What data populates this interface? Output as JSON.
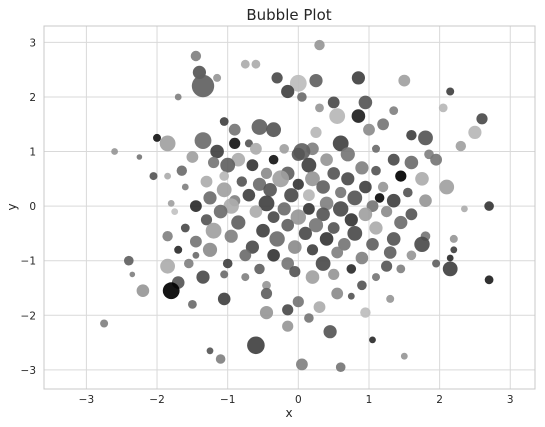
{
  "chart_data": {
    "type": "scatter",
    "title": "Bubble Plot",
    "xlabel": "x",
    "ylabel": "y",
    "xlim": [
      -3.6,
      3.35
    ],
    "ylim": [
      -3.35,
      3.3
    ],
    "xticks": [
      -3,
      -2,
      -1,
      0,
      1,
      2,
      3
    ],
    "yticks": [
      -3,
      -2,
      -1,
      0,
      1,
      2,
      3
    ],
    "grid": true,
    "style": "whitegrid",
    "colors": {
      "background": "#ffffff",
      "grid": "#d9d9d9",
      "spine": "#c8c8c8",
      "text": "#262626"
    },
    "encoding": {
      "point_color": "grayscale value from 0 (black) to 1 (light gray)",
      "point_size": "bubble area"
    },
    "points": [
      {
        "x": 0.3,
        "y": 2.95,
        "s": 70,
        "c": 0.7
      },
      {
        "x": -1.45,
        "y": 2.75,
        "s": 70,
        "c": 0.6
      },
      {
        "x": -0.6,
        "y": 2.6,
        "s": 50,
        "c": 0.8
      },
      {
        "x": -0.75,
        "y": 2.6,
        "s": 50,
        "c": 0.8
      },
      {
        "x": -1.4,
        "y": 2.45,
        "s": 110,
        "c": 0.4
      },
      {
        "x": -1.15,
        "y": 2.35,
        "s": 40,
        "c": 0.7
      },
      {
        "x": -0.3,
        "y": 2.35,
        "s": 80,
        "c": 0.35
      },
      {
        "x": 0.25,
        "y": 2.3,
        "s": 110,
        "c": 0.45
      },
      {
        "x": 0.85,
        "y": 2.35,
        "s": 110,
        "c": 0.3
      },
      {
        "x": 0.0,
        "y": 2.25,
        "s": 180,
        "c": 0.88
      },
      {
        "x": 1.5,
        "y": 2.3,
        "s": 90,
        "c": 0.75
      },
      {
        "x": -1.35,
        "y": 2.2,
        "s": 320,
        "c": 0.45
      },
      {
        "x": -0.15,
        "y": 2.1,
        "s": 110,
        "c": 0.3
      },
      {
        "x": 2.15,
        "y": 2.1,
        "s": 40,
        "c": 0.3
      },
      {
        "x": -1.7,
        "y": 2.0,
        "s": 30,
        "c": 0.6
      },
      {
        "x": 0.05,
        "y": 2.0,
        "s": 60,
        "c": 0.5
      },
      {
        "x": 0.5,
        "y": 1.9,
        "s": 90,
        "c": 0.35
      },
      {
        "x": 0.95,
        "y": 1.9,
        "s": 120,
        "c": 0.4
      },
      {
        "x": 2.05,
        "y": 1.8,
        "s": 50,
        "c": 0.85
      },
      {
        "x": 0.3,
        "y": 1.8,
        "s": 50,
        "c": 0.7
      },
      {
        "x": 1.35,
        "y": 1.75,
        "s": 50,
        "c": 0.6
      },
      {
        "x": 0.55,
        "y": 1.65,
        "s": 160,
        "c": 0.85
      },
      {
        "x": 2.6,
        "y": 1.6,
        "s": 80,
        "c": 0.35
      },
      {
        "x": 0.85,
        "y": 1.65,
        "s": 120,
        "c": 0.15
      },
      {
        "x": -1.05,
        "y": 1.55,
        "s": 50,
        "c": 0.3
      },
      {
        "x": -0.55,
        "y": 1.45,
        "s": 160,
        "c": 0.45
      },
      {
        "x": 1.2,
        "y": 1.5,
        "s": 90,
        "c": 0.55
      },
      {
        "x": -0.35,
        "y": 1.4,
        "s": 140,
        "c": 0.4
      },
      {
        "x": -0.9,
        "y": 1.4,
        "s": 90,
        "c": 0.55
      },
      {
        "x": 1.0,
        "y": 1.4,
        "s": 90,
        "c": 0.65
      },
      {
        "x": 2.5,
        "y": 1.35,
        "s": 110,
        "c": 0.85
      },
      {
        "x": 0.25,
        "y": 1.35,
        "s": 80,
        "c": 0.85
      },
      {
        "x": 1.6,
        "y": 1.3,
        "s": 70,
        "c": 0.3
      },
      {
        "x": 1.8,
        "y": 1.25,
        "s": 140,
        "c": 0.4
      },
      {
        "x": -2.0,
        "y": 1.25,
        "s": 40,
        "c": 0.1
      },
      {
        "x": -1.35,
        "y": 1.2,
        "s": 180,
        "c": 0.5
      },
      {
        "x": -0.7,
        "y": 1.15,
        "s": 40,
        "c": 0.4
      },
      {
        "x": 0.6,
        "y": 1.15,
        "s": 160,
        "c": 0.3
      },
      {
        "x": -1.85,
        "y": 1.15,
        "s": 160,
        "c": 0.75
      },
      {
        "x": -0.9,
        "y": 1.15,
        "s": 80,
        "c": 0.1
      },
      {
        "x": 2.3,
        "y": 1.1,
        "s": 70,
        "c": 0.75
      },
      {
        "x": 0.2,
        "y": 1.05,
        "s": 100,
        "c": 0.6
      },
      {
        "x": -0.2,
        "y": 1.05,
        "s": 60,
        "c": 0.75
      },
      {
        "x": 1.1,
        "y": 1.05,
        "s": 40,
        "c": 0.5
      },
      {
        "x": -0.6,
        "y": 1.05,
        "s": 90,
        "c": 0.8
      },
      {
        "x": 0.05,
        "y": 1.0,
        "s": 180,
        "c": 0.45
      },
      {
        "x": 0.7,
        "y": 0.95,
        "s": 130,
        "c": 0.55
      },
      {
        "x": -1.15,
        "y": 1.0,
        "s": 120,
        "c": 0.3
      },
      {
        "x": 1.85,
        "y": 0.95,
        "s": 60,
        "c": 0.6
      },
      {
        "x": 1.95,
        "y": 0.85,
        "s": 90,
        "c": 0.55
      },
      {
        "x": -2.6,
        "y": 1.0,
        "s": 30,
        "c": 0.7
      },
      {
        "x": -2.25,
        "y": 0.9,
        "s": 20,
        "c": 0.55
      },
      {
        "x": 0.0,
        "y": 0.95,
        "s": 110,
        "c": 0.4
      },
      {
        "x": -1.5,
        "y": 0.9,
        "s": 90,
        "c": 0.75
      },
      {
        "x": -0.85,
        "y": 0.85,
        "s": 120,
        "c": 0.8
      },
      {
        "x": -0.35,
        "y": 0.85,
        "s": 60,
        "c": 0.1
      },
      {
        "x": 0.4,
        "y": 0.85,
        "s": 100,
        "c": 0.7
      },
      {
        "x": 1.35,
        "y": 0.85,
        "s": 90,
        "c": 0.35
      },
      {
        "x": 1.6,
        "y": 0.8,
        "s": 120,
        "c": 0.5
      },
      {
        "x": -1.2,
        "y": 0.8,
        "s": 80,
        "c": 0.55
      },
      {
        "x": -1.0,
        "y": 0.75,
        "s": 140,
        "c": 0.45
      },
      {
        "x": -0.65,
        "y": 0.75,
        "s": 90,
        "c": 0.25
      },
      {
        "x": 0.15,
        "y": 0.75,
        "s": 140,
        "c": 0.3
      },
      {
        "x": 0.9,
        "y": 0.7,
        "s": 110,
        "c": 0.6
      },
      {
        "x": -1.65,
        "y": 0.65,
        "s": 70,
        "c": 0.5
      },
      {
        "x": 1.1,
        "y": 0.65,
        "s": 60,
        "c": 0.4
      },
      {
        "x": -0.15,
        "y": 0.6,
        "s": 120,
        "c": 0.45
      },
      {
        "x": -0.45,
        "y": 0.6,
        "s": 80,
        "c": 0.65
      },
      {
        "x": 0.5,
        "y": 0.6,
        "s": 100,
        "c": 0.4
      },
      {
        "x": 1.45,
        "y": 0.55,
        "s": 80,
        "c": 0.0
      },
      {
        "x": -1.05,
        "y": 0.55,
        "s": 60,
        "c": 0.85
      },
      {
        "x": -0.25,
        "y": 0.5,
        "s": 180,
        "c": 0.75
      },
      {
        "x": 0.2,
        "y": 0.5,
        "s": 140,
        "c": 0.7
      },
      {
        "x": 0.7,
        "y": 0.5,
        "s": 110,
        "c": 0.35
      },
      {
        "x": 1.75,
        "y": 0.5,
        "s": 120,
        "c": 0.8
      },
      {
        "x": 2.1,
        "y": 0.35,
        "s": 140,
        "c": 0.75
      },
      {
        "x": -2.05,
        "y": 0.55,
        "s": 40,
        "c": 0.4
      },
      {
        "x": -1.85,
        "y": 0.55,
        "s": 30,
        "c": 0.8
      },
      {
        "x": -1.3,
        "y": 0.45,
        "s": 90,
        "c": 0.8
      },
      {
        "x": -0.8,
        "y": 0.45,
        "s": 70,
        "c": 0.4
      },
      {
        "x": -0.55,
        "y": 0.4,
        "s": 110,
        "c": 0.5
      },
      {
        "x": 0.0,
        "y": 0.4,
        "s": 80,
        "c": 0.25
      },
      {
        "x": 0.35,
        "y": 0.35,
        "s": 120,
        "c": 0.45
      },
      {
        "x": 0.95,
        "y": 0.35,
        "s": 100,
        "c": 0.3
      },
      {
        "x": 1.2,
        "y": 0.35,
        "s": 70,
        "c": 0.7
      },
      {
        "x": -1.6,
        "y": 0.35,
        "s": 30,
        "c": 0.6
      },
      {
        "x": -1.05,
        "y": 0.3,
        "s": 140,
        "c": 0.75
      },
      {
        "x": -0.4,
        "y": 0.3,
        "s": 120,
        "c": 0.4
      },
      {
        "x": 0.6,
        "y": 0.25,
        "s": 80,
        "c": 0.55
      },
      {
        "x": 1.55,
        "y": 0.25,
        "s": 60,
        "c": 0.4
      },
      {
        "x": -0.1,
        "y": 0.2,
        "s": 130,
        "c": 0.35
      },
      {
        "x": 0.15,
        "y": 0.2,
        "s": 90,
        "c": 0.85
      },
      {
        "x": -0.7,
        "y": 0.2,
        "s": 100,
        "c": 0.3
      },
      {
        "x": 0.8,
        "y": 0.15,
        "s": 140,
        "c": 0.4
      },
      {
        "x": 1.35,
        "y": 0.1,
        "s": 120,
        "c": 0.3
      },
      {
        "x": -1.25,
        "y": 0.15,
        "s": 110,
        "c": 0.5
      },
      {
        "x": -0.9,
        "y": 0.1,
        "s": 80,
        "c": 0.6
      },
      {
        "x": 1.8,
        "y": 0.1,
        "s": 100,
        "c": 0.7
      },
      {
        "x": -0.45,
        "y": 0.05,
        "s": 160,
        "c": 0.3
      },
      {
        "x": 0.4,
        "y": 0.05,
        "s": 120,
        "c": 0.6
      },
      {
        "x": 1.05,
        "y": 0.0,
        "s": 90,
        "c": 0.55
      },
      {
        "x": -1.8,
        "y": 0.05,
        "s": 30,
        "c": 0.75
      },
      {
        "x": -1.45,
        "y": 0.0,
        "s": 90,
        "c": 0.2
      },
      {
        "x": -0.95,
        "y": 0.0,
        "s": 150,
        "c": 0.8
      },
      {
        "x": -0.2,
        "y": -0.05,
        "s": 110,
        "c": 0.5
      },
      {
        "x": 0.15,
        "y": -0.05,
        "s": 90,
        "c": 0.25
      },
      {
        "x": 0.6,
        "y": -0.05,
        "s": 150,
        "c": 0.35
      },
      {
        "x": 1.25,
        "y": -0.1,
        "s": 80,
        "c": 0.65
      },
      {
        "x": 1.6,
        "y": -0.15,
        "s": 90,
        "c": 0.4
      },
      {
        "x": 2.7,
        "y": 0.0,
        "s": 60,
        "c": 0.25
      },
      {
        "x": 2.35,
        "y": -0.05,
        "s": 30,
        "c": 0.8
      },
      {
        "x": 1.15,
        "y": 0.15,
        "s": 60,
        "c": 0.05
      },
      {
        "x": -1.75,
        "y": -0.1,
        "s": 30,
        "c": 0.9
      },
      {
        "x": -1.1,
        "y": -0.1,
        "s": 120,
        "c": 0.5
      },
      {
        "x": -0.6,
        "y": -0.1,
        "s": 100,
        "c": 0.8
      },
      {
        "x": 0.35,
        "y": -0.15,
        "s": 120,
        "c": 0.4
      },
      {
        "x": 0.95,
        "y": -0.15,
        "s": 120,
        "c": 0.75
      },
      {
        "x": -0.35,
        "y": -0.2,
        "s": 90,
        "c": 0.35
      },
      {
        "x": 0.0,
        "y": -0.2,
        "s": 150,
        "c": 0.7
      },
      {
        "x": -1.3,
        "y": -0.25,
        "s": 80,
        "c": 0.4
      },
      {
        "x": 0.75,
        "y": -0.25,
        "s": 110,
        "c": 0.25
      },
      {
        "x": 1.45,
        "y": -0.3,
        "s": 110,
        "c": 0.5
      },
      {
        "x": -0.85,
        "y": -0.3,
        "s": 130,
        "c": 0.45
      },
      {
        "x": -0.15,
        "y": -0.35,
        "s": 100,
        "c": 0.45
      },
      {
        "x": 0.25,
        "y": -0.35,
        "s": 130,
        "c": 0.55
      },
      {
        "x": 0.5,
        "y": -0.4,
        "s": 90,
        "c": 0.4
      },
      {
        "x": 1.1,
        "y": -0.4,
        "s": 110,
        "c": 0.8
      },
      {
        "x": -1.6,
        "y": -0.4,
        "s": 50,
        "c": 0.35
      },
      {
        "x": -1.2,
        "y": -0.45,
        "s": 160,
        "c": 0.75
      },
      {
        "x": -0.5,
        "y": -0.45,
        "s": 120,
        "c": 0.3
      },
      {
        "x": 0.1,
        "y": -0.5,
        "s": 110,
        "c": 0.35
      },
      {
        "x": 0.8,
        "y": -0.5,
        "s": 140,
        "c": 0.35
      },
      {
        "x": 1.8,
        "y": -0.55,
        "s": 60,
        "c": 0.55
      },
      {
        "x": -1.85,
        "y": -0.55,
        "s": 70,
        "c": 0.6
      },
      {
        "x": -0.95,
        "y": -0.55,
        "s": 110,
        "c": 0.6
      },
      {
        "x": -0.3,
        "y": -0.6,
        "s": 150,
        "c": 0.5
      },
      {
        "x": 0.4,
        "y": -0.6,
        "s": 120,
        "c": 0.25
      },
      {
        "x": 1.35,
        "y": -0.6,
        "s": 120,
        "c": 0.4
      },
      {
        "x": 2.2,
        "y": -0.6,
        "s": 40,
        "c": 0.7
      },
      {
        "x": -1.45,
        "y": -0.65,
        "s": 90,
        "c": 0.55
      },
      {
        "x": 0.65,
        "y": -0.7,
        "s": 100,
        "c": 0.55
      },
      {
        "x": 1.05,
        "y": -0.7,
        "s": 100,
        "c": 0.45
      },
      {
        "x": -0.65,
        "y": -0.75,
        "s": 110,
        "c": 0.35
      },
      {
        "x": -0.05,
        "y": -0.75,
        "s": 120,
        "c": 0.65
      },
      {
        "x": 1.75,
        "y": -0.7,
        "s": 150,
        "c": 0.35
      },
      {
        "x": 0.2,
        "y": -0.8,
        "s": 80,
        "c": 0.3
      },
      {
        "x": -1.7,
        "y": -0.8,
        "s": 40,
        "c": 0.2
      },
      {
        "x": -1.25,
        "y": -0.8,
        "s": 130,
        "c": 0.65
      },
      {
        "x": 0.55,
        "y": -0.85,
        "s": 90,
        "c": 0.6
      },
      {
        "x": 1.3,
        "y": -0.85,
        "s": 100,
        "c": 0.45
      },
      {
        "x": 2.2,
        "y": -0.8,
        "s": 30,
        "c": 0.3
      },
      {
        "x": -1.45,
        "y": -0.9,
        "s": 30,
        "c": 0.5
      },
      {
        "x": -0.75,
        "y": -0.9,
        "s": 90,
        "c": 0.5
      },
      {
        "x": -0.35,
        "y": -0.9,
        "s": 100,
        "c": 0.25
      },
      {
        "x": 0.9,
        "y": -0.95,
        "s": 100,
        "c": 0.6
      },
      {
        "x": 1.6,
        "y": -0.9,
        "s": 60,
        "c": 0.7
      },
      {
        "x": 2.15,
        "y": -0.95,
        "s": 30,
        "c": 0.2
      },
      {
        "x": -2.4,
        "y": -1.0,
        "s": 60,
        "c": 0.45
      },
      {
        "x": -1.55,
        "y": -1.05,
        "s": 60,
        "c": 0.6
      },
      {
        "x": -1.0,
        "y": -1.05,
        "s": 60,
        "c": 0.3
      },
      {
        "x": -0.15,
        "y": -1.05,
        "s": 100,
        "c": 0.55
      },
      {
        "x": 0.35,
        "y": -1.05,
        "s": 140,
        "c": 0.35
      },
      {
        "x": 1.25,
        "y": -1.1,
        "s": 80,
        "c": 0.4
      },
      {
        "x": 1.95,
        "y": -1.05,
        "s": 40,
        "c": 0.45
      },
      {
        "x": -1.85,
        "y": -1.1,
        "s": 140,
        "c": 0.8
      },
      {
        "x": -0.55,
        "y": -1.15,
        "s": 70,
        "c": 0.45
      },
      {
        "x": 0.75,
        "y": -1.15,
        "s": 60,
        "c": 0.2
      },
      {
        "x": 1.45,
        "y": -1.15,
        "s": 50,
        "c": 0.6
      },
      {
        "x": 2.15,
        "y": -1.15,
        "s": 140,
        "c": 0.3
      },
      {
        "x": -0.05,
        "y": -1.2,
        "s": 80,
        "c": 0.4
      },
      {
        "x": -1.05,
        "y": -1.25,
        "s": 40,
        "c": 0.5
      },
      {
        "x": 0.5,
        "y": -1.25,
        "s": 80,
        "c": 0.7
      },
      {
        "x": -2.35,
        "y": -1.25,
        "s": 20,
        "c": 0.6
      },
      {
        "x": -1.35,
        "y": -1.3,
        "s": 110,
        "c": 0.35
      },
      {
        "x": -0.75,
        "y": -1.3,
        "s": 40,
        "c": 0.6
      },
      {
        "x": 0.2,
        "y": -1.3,
        "s": 120,
        "c": 0.75
      },
      {
        "x": 1.1,
        "y": -1.3,
        "s": 40,
        "c": 0.55
      },
      {
        "x": 2.7,
        "y": -1.35,
        "s": 50,
        "c": 0.15
      },
      {
        "x": -1.7,
        "y": -1.4,
        "s": 100,
        "c": 0.4
      },
      {
        "x": -0.45,
        "y": -1.45,
        "s": 50,
        "c": 0.7
      },
      {
        "x": 0.9,
        "y": -1.45,
        "s": 60,
        "c": 0.4
      },
      {
        "x": -1.8,
        "y": -1.55,
        "s": 180,
        "c": 0.0
      },
      {
        "x": -2.2,
        "y": -1.55,
        "s": 100,
        "c": 0.7
      },
      {
        "x": -0.45,
        "y": -1.6,
        "s": 80,
        "c": 0.45
      },
      {
        "x": 0.55,
        "y": -1.6,
        "s": 90,
        "c": 0.65
      },
      {
        "x": 0.75,
        "y": -1.65,
        "s": 30,
        "c": 0.4
      },
      {
        "x": -1.05,
        "y": -1.7,
        "s": 100,
        "c": 0.3
      },
      {
        "x": 1.3,
        "y": -1.7,
        "s": 40,
        "c": 0.7
      },
      {
        "x": 0.0,
        "y": -1.75,
        "s": 80,
        "c": 0.55
      },
      {
        "x": -1.5,
        "y": -1.8,
        "s": 50,
        "c": 0.5
      },
      {
        "x": 0.3,
        "y": -1.85,
        "s": 90,
        "c": 0.8
      },
      {
        "x": -0.15,
        "y": -1.9,
        "s": 80,
        "c": 0.35
      },
      {
        "x": -0.45,
        "y": -1.95,
        "s": 110,
        "c": 0.7
      },
      {
        "x": 0.95,
        "y": -1.95,
        "s": 70,
        "c": 0.88
      },
      {
        "x": 0.15,
        "y": -2.05,
        "s": 60,
        "c": 0.55
      },
      {
        "x": -0.15,
        "y": -2.2,
        "s": 80,
        "c": 0.7
      },
      {
        "x": 0.45,
        "y": -2.3,
        "s": 110,
        "c": 0.4
      },
      {
        "x": 1.05,
        "y": -2.45,
        "s": 30,
        "c": 0.2
      },
      {
        "x": -0.6,
        "y": -2.55,
        "s": 200,
        "c": 0.3
      },
      {
        "x": -1.25,
        "y": -2.65,
        "s": 30,
        "c": 0.4
      },
      {
        "x": 1.5,
        "y": -2.75,
        "s": 30,
        "c": 0.7
      },
      {
        "x": -1.1,
        "y": -2.8,
        "s": 60,
        "c": 0.6
      },
      {
        "x": 0.05,
        "y": -2.9,
        "s": 90,
        "c": 0.6
      },
      {
        "x": 0.6,
        "y": -2.95,
        "s": 60,
        "c": 0.55
      },
      {
        "x": -2.75,
        "y": -2.15,
        "s": 40,
        "c": 0.6
      }
    ]
  }
}
